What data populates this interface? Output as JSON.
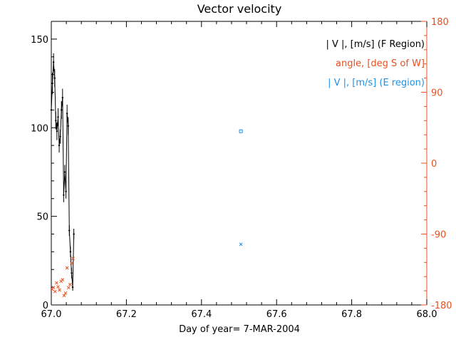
{
  "chart_data": {
    "type": "scatter",
    "title": "Vector velocity",
    "xlabel": "Day of year= 7-MAR-2004",
    "xlim": [
      67.0,
      68.0
    ],
    "xticks": [
      67.0,
      67.2,
      67.4,
      67.6,
      67.8,
      68.0
    ],
    "xtick_labels": [
      "67.0",
      "67.2",
      "67.4",
      "67.6",
      "67.8",
      "68.0"
    ],
    "ylim_left": [
      0,
      160
    ],
    "yticks_left": [
      0,
      50,
      100,
      150
    ],
    "ytick_labels_left": [
      "0",
      "50",
      "100",
      "150"
    ],
    "ylim_right": [
      -180,
      180
    ],
    "yticks_right": [
      -180,
      -90,
      0,
      90,
      180
    ],
    "ytick_labels_right": [
      "-180",
      "-90",
      "0",
      "90",
      "180"
    ],
    "colors": {
      "axis": "#000000",
      "f_region": "#000000",
      "angle": "#e8501f",
      "e_region": "#1e90e8"
    },
    "legend": [
      {
        "label": "| V |, [m/s] (F Region)",
        "color": "#000000"
      },
      {
        "label": "angle, [deg S of W]",
        "color": "#e8501f"
      },
      {
        "label": "| V |, [m/s] (E region)",
        "color": "#1e90e8"
      }
    ],
    "series": [
      {
        "name": "| V |, [m/s] (F Region)",
        "axis": "left",
        "style": "line+errorbar",
        "x": [
          67.0,
          67.003,
          67.006,
          67.009,
          67.012,
          67.015,
          67.018,
          67.021,
          67.024,
          67.027,
          67.03,
          67.033,
          67.036,
          67.039,
          67.042,
          67.045,
          67.048,
          67.051,
          67.054,
          67.057,
          67.06
        ],
        "y": [
          110,
          125,
          137,
          128,
          104,
          98,
          106,
          90,
          95,
          110,
          117,
          62,
          75,
          64,
          108,
          101,
          42,
          30,
          18,
          10,
          40
        ],
        "err": [
          6,
          6,
          5,
          5,
          5,
          5,
          5,
          4,
          4,
          5,
          5,
          4,
          4,
          4,
          5,
          5,
          3,
          3,
          3,
          2,
          3
        ]
      },
      {
        "name": "angle, [deg S of W]",
        "axis": "right",
        "style": "x-marker",
        "x": [
          67.002,
          67.006,
          67.01,
          67.014,
          67.018,
          67.022,
          67.026,
          67.03,
          67.034,
          67.038,
          67.042,
          67.046,
          67.05,
          67.054,
          67.058
        ],
        "y": [
          -160,
          -158,
          -163,
          -152,
          -157,
          -161,
          -150,
          -148,
          -168,
          -165,
          -133,
          -158,
          -154,
          -127,
          -121
        ]
      },
      {
        "name": "| V |, [m/s] (E region)",
        "axis": "left",
        "style": "box-marker",
        "x": [
          67.505
        ],
        "y": [
          98
        ]
      },
      {
        "name": "angle (E region)",
        "axis": "right",
        "style": "x-marker-blue",
        "x": [
          67.505
        ],
        "y": [
          -103
        ]
      }
    ]
  }
}
